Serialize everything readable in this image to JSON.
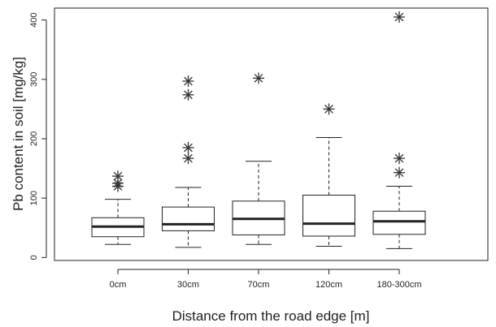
{
  "chart_data": {
    "type": "box",
    "xlabel": "Distance from the road edge [m]",
    "ylabel": "Pb content in soil [mg/kg]",
    "ylim": [
      -5,
      420
    ],
    "yticks": [
      0,
      100,
      200,
      300,
      400
    ],
    "categories": [
      "0cm",
      "30cm",
      "70cm",
      "120cm",
      "180-300cm"
    ],
    "boxes": [
      {
        "category": "0cm",
        "whisker_low": 22,
        "q1": 35,
        "median": 52,
        "q3": 67,
        "whisker_high": 98,
        "outliers": [
          120,
          125,
          137
        ]
      },
      {
        "category": "30cm",
        "whisker_low": 17,
        "q1": 45,
        "median": 56,
        "q3": 85,
        "whisker_high": 118,
        "outliers": [
          167,
          185,
          274,
          297
        ]
      },
      {
        "category": "70cm",
        "whisker_low": 22,
        "q1": 38,
        "median": 65,
        "q3": 95,
        "whisker_high": 162,
        "outliers": [
          302
        ]
      },
      {
        "category": "120cm",
        "whisker_low": 19,
        "q1": 36,
        "median": 57,
        "q3": 105,
        "whisker_high": 202,
        "outliers": [
          250
        ]
      },
      {
        "category": "180-300cm",
        "whisker_low": 15,
        "q1": 39,
        "median": 61,
        "q3": 78,
        "whisker_high": 120,
        "outliers": [
          143,
          167,
          405
        ]
      }
    ],
    "outlier_marker": "asterisk",
    "grid": false,
    "colors": {
      "line": "#222222",
      "outlier": "#333333",
      "box_fill": "#ffffff"
    }
  }
}
